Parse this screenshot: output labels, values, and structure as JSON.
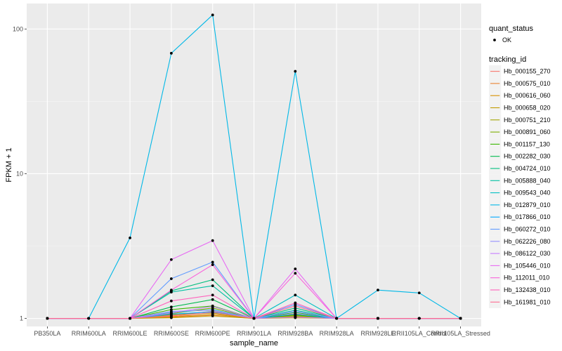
{
  "chart_data": {
    "type": "line",
    "title": "",
    "xlabel": "sample_name",
    "ylabel": "FPKM + 1",
    "y_scale": "log10",
    "ylim": [
      0.88,
      150
    ],
    "y_ticks": [
      {
        "value": 1,
        "label": "1"
      },
      {
        "value": 10,
        "label": "10"
      },
      {
        "value": 100,
        "label": "100"
      }
    ],
    "categories": [
      "PB350LA",
      "RRIM600LA",
      "RRIM600LE",
      "RRIM600SE",
      "RRIM600PE",
      "RRIM901LA",
      "RRIM928BA",
      "RRIM928LA",
      "RRIM928LE",
      "RRII105LA_Control",
      "RRII105LA_Stressed"
    ],
    "legend": {
      "position": "right",
      "point_title": "quant_status",
      "point_entries": [
        "OK"
      ],
      "color_title": "tracking_id"
    },
    "series": [
      {
        "name": "Hb_000155_270",
        "color": "#F8766D",
        "values": [
          1,
          1,
          1,
          1.05,
          1.12,
          1,
          1.08,
          1,
          1,
          1,
          1
        ]
      },
      {
        "name": "Hb_000575_010",
        "color": "#EA8331",
        "values": [
          1,
          1,
          1,
          1.02,
          1.05,
          1,
          1.03,
          1,
          1,
          1,
          1
        ]
      },
      {
        "name": "Hb_000616_060",
        "color": "#D89000",
        "values": [
          1,
          1,
          1,
          1.03,
          1.07,
          1,
          1.02,
          1,
          1,
          1,
          1
        ]
      },
      {
        "name": "Hb_000658_020",
        "color": "#C09B00",
        "values": [
          1,
          1,
          1,
          1.01,
          1.04,
          1,
          1.01,
          1,
          1,
          1,
          1
        ]
      },
      {
        "name": "Hb_000751_210",
        "color": "#A3A500",
        "values": [
          1,
          1,
          1,
          1.06,
          1.09,
          1,
          1.05,
          1,
          1,
          1,
          1
        ]
      },
      {
        "name": "Hb_000891_060",
        "color": "#7CAE00",
        "values": [
          1,
          1,
          1,
          1.08,
          1.18,
          1,
          1.04,
          1,
          1,
          1,
          1
        ]
      },
      {
        "name": "Hb_001157_130",
        "color": "#39B600",
        "values": [
          1,
          1,
          1,
          1.15,
          1.22,
          1,
          1.06,
          1,
          1,
          1,
          1
        ]
      },
      {
        "name": "Hb_002282_030",
        "color": "#00BB4E",
        "values": [
          1,
          1,
          1,
          1.2,
          1.35,
          1,
          1.1,
          1,
          1,
          1,
          1
        ]
      },
      {
        "name": "Hb_004724_010",
        "color": "#00BF7D",
        "values": [
          1,
          1,
          1,
          1.55,
          1.85,
          1,
          1.18,
          1,
          1,
          1,
          1
        ]
      },
      {
        "name": "Hb_005888_040",
        "color": "#00C1A3",
        "values": [
          1,
          1,
          1,
          1.52,
          1.68,
          1,
          1.14,
          1,
          1,
          1,
          1
        ]
      },
      {
        "name": "Hb_009543_040",
        "color": "#00BFC4",
        "values": [
          1,
          1,
          1,
          1.1,
          1.15,
          1,
          1.45,
          1,
          1,
          1,
          1
        ]
      },
      {
        "name": "Hb_012879_010",
        "color": "#00B8E7",
        "values": [
          1,
          1,
          3.6,
          68,
          125,
          1,
          51,
          1,
          1.57,
          1.5,
          1
        ]
      },
      {
        "name": "Hb_017866_010",
        "color": "#00A9FF",
        "values": [
          1,
          1,
          1,
          1.07,
          1.11,
          1,
          1.07,
          1,
          1,
          1,
          1
        ]
      },
      {
        "name": "Hb_060272_010",
        "color": "#619CFF",
        "values": [
          1,
          1,
          1,
          1.88,
          2.45,
          1,
          1.25,
          1,
          1,
          1,
          1
        ]
      },
      {
        "name": "Hb_062226_080",
        "color": "#9590FF",
        "values": [
          1,
          1,
          1,
          1.12,
          1.14,
          1,
          1.12,
          1,
          1,
          1,
          1
        ]
      },
      {
        "name": "Hb_086122_030",
        "color": "#C77CFF",
        "values": [
          1,
          1,
          1,
          1.09,
          1.21,
          1,
          1.02,
          1,
          1,
          1,
          1
        ]
      },
      {
        "name": "Hb_105446_010",
        "color": "#E76BF3",
        "values": [
          1,
          1,
          1,
          2.55,
          3.45,
          1,
          2.2,
          1,
          1,
          1,
          1
        ]
      },
      {
        "name": "Hb_112011_010",
        "color": "#FA62DB",
        "values": [
          1,
          1,
          1,
          1.57,
          2.35,
          1,
          2.05,
          1,
          1,
          1,
          1
        ]
      },
      {
        "name": "Hb_132438_010",
        "color": "#FF62BC",
        "values": [
          1,
          1,
          1,
          1.32,
          1.45,
          1,
          1.28,
          1,
          1,
          1,
          1
        ]
      },
      {
        "name": "Hb_161981_010",
        "color": "#FF6C91",
        "values": [
          1,
          1,
          1,
          1.04,
          1.1,
          1,
          1.22,
          1,
          1,
          1,
          1
        ]
      }
    ]
  }
}
